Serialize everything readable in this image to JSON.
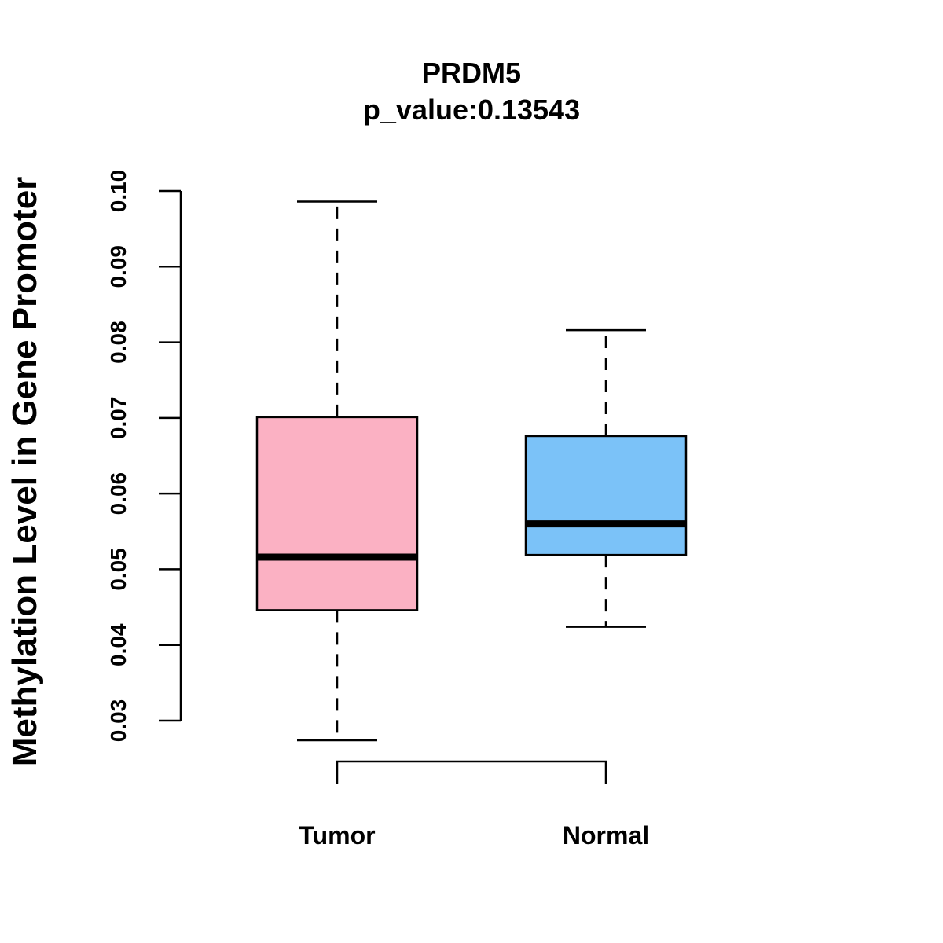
{
  "chart_data": {
    "type": "box",
    "title": "PRDM5",
    "subtitle": "p_value:0.13543",
    "xlabel": "",
    "ylabel": "Methylation Level in Gene Promoter",
    "ylim": [
      0.03,
      0.1
    ],
    "yticks": [
      "0.03",
      "0.04",
      "0.05",
      "0.06",
      "0.07",
      "0.08",
      "0.09",
      "0.10"
    ],
    "categories": [
      "Tumor",
      "Normal"
    ],
    "boxes": [
      {
        "name": "Tumor",
        "whisker_low": 0.0274,
        "q1": 0.0446,
        "median": 0.0516,
        "q3": 0.0701,
        "whisker_high": 0.0986,
        "color": "#FBB1C3"
      },
      {
        "name": "Normal",
        "whisker_low": 0.0424,
        "q1": 0.0519,
        "median": 0.056,
        "q3": 0.0676,
        "whisker_high": 0.0816,
        "color": "#7BC2F8"
      }
    ],
    "comparison_bracket": [
      "Tumor",
      "Normal"
    ],
    "grid": false,
    "legend": "none"
  }
}
